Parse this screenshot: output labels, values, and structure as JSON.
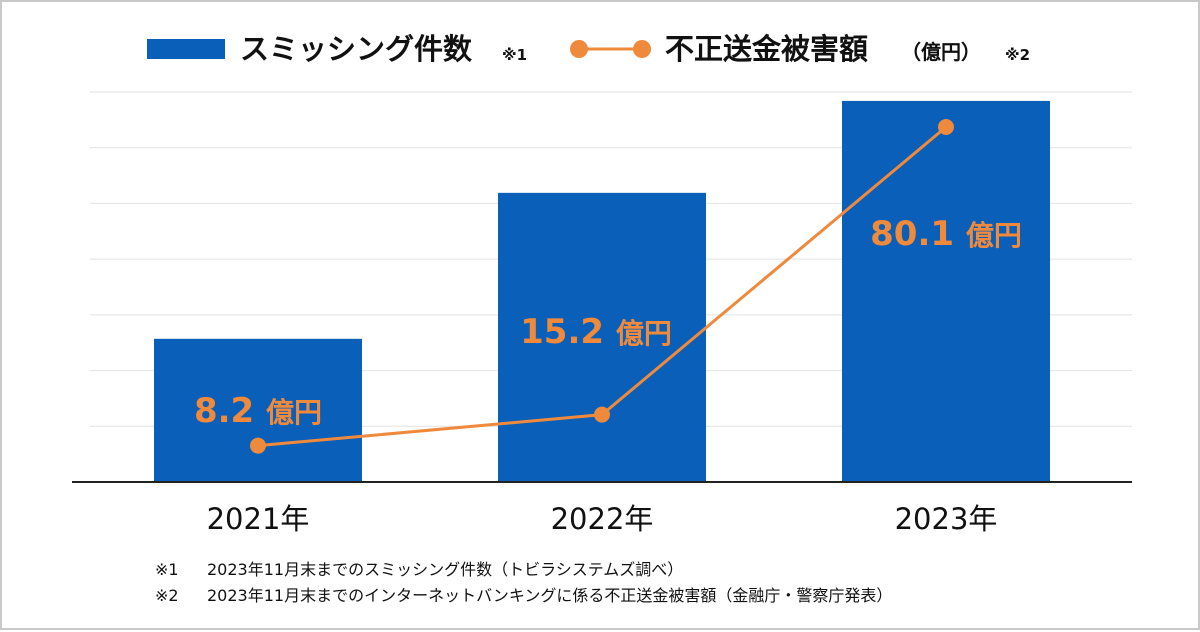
{
  "chart_data": {
    "type": "bar",
    "categories": [
      "2021年",
      "2022年",
      "2023年"
    ],
    "series": [
      {
        "name": "スミッシング件数",
        "name_note": "※1",
        "type": "bar",
        "values": [
          2.57,
          5.19,
          6.84
        ]
      },
      {
        "name": "不正送金被害額",
        "name_suffix": "（億円）",
        "name_note": "※2",
        "type": "line",
        "values": [
          8.2,
          15.2,
          80.1
        ],
        "data_labels": [
          "8.2 億円",
          "15.2 億円",
          "80.1 億円"
        ]
      }
    ],
    "ylim": [
      0,
      7
    ],
    "line_ylim": [
      0,
      88
    ],
    "grid": true,
    "legend_position": "top-center",
    "colors": {
      "bar": "#0a5fb8",
      "line": "#ef8a3c",
      "grid": "#e2e2e2",
      "axis": "#222222"
    }
  },
  "footnotes": [
    {
      "mark": "※1",
      "text": "2023年11月末までのスミッシング件数（トビラシステムズ調べ）"
    },
    {
      "mark": "※2",
      "text": "2023年11月末までのインターネットバンキングに係る不正送金被害額（金融庁・警察庁発表）"
    }
  ]
}
